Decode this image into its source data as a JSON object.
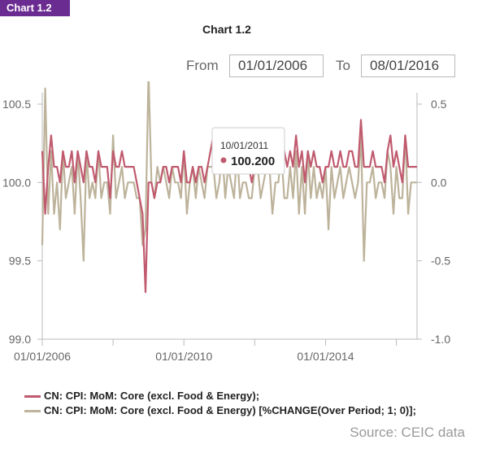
{
  "badge": "Chart 1.2",
  "range": {
    "from_label": "From",
    "from_value": "01/01/2006",
    "to_label": "To",
    "to_value": "08/01/2016"
  },
  "legend": {
    "items": [
      {
        "label": "CN: CPI: MoM: Core (excl. Food & Energy);",
        "color": "#c05a6e"
      },
      {
        "label": "CN: CPI: MoM: Core (excl. Food & Energy) [%CHANGE(Over Period; 1; 0)];",
        "color": "#bdb39b"
      }
    ]
  },
  "source": "Source: CEIC data",
  "tooltip": {
    "date": "10/01/2011",
    "value": "100.200",
    "marker_color": "#c05a6e"
  },
  "chart_data": {
    "type": "line",
    "title": "Chart 1.2",
    "x_start": "2006-01",
    "x_end": "2016-08",
    "x_ticks": [
      "01/01/2006",
      "01/01/2010",
      "01/01/2014"
    ],
    "y_left": {
      "range": [
        99.0,
        100.5
      ],
      "ticks": [
        "99.0",
        "99.5",
        "100.0",
        "100.5"
      ]
    },
    "y_right": {
      "range": [
        -1.0,
        0.5
      ],
      "ticks": [
        "-1.0",
        "-0.5",
        "0.0",
        "0.5"
      ]
    },
    "grid": false,
    "series": [
      {
        "name": "CN: CPI: MoM: Core (excl. Food & Energy);",
        "axis": "left",
        "color": "#c05a6e",
        "values": [
          100.2,
          99.8,
          100.1,
          100.3,
          100.1,
          100.1,
          100.0,
          100.2,
          100.1,
          100.1,
          100.2,
          100.0,
          100.2,
          100.1,
          100.0,
          100.2,
          100.1,
          100.1,
          100.0,
          100.2,
          100.1,
          100.1,
          100.1,
          99.9,
          100.2,
          100.1,
          100.1,
          100.2,
          100.1,
          100.1,
          100.1,
          100.1,
          100.0,
          99.9,
          99.8,
          99.3,
          100.0,
          100.0,
          99.9,
          100.0,
          100.0,
          100.1,
          100.1,
          100.0,
          100.1,
          100.1,
          100.1,
          100.0,
          100.2,
          100.0,
          100.0,
          100.1,
          100.0,
          100.1,
          100.1,
          100.0,
          100.1,
          100.2,
          100.3,
          100.2,
          100.2,
          100.2,
          100.1,
          100.2,
          100.2,
          100.1,
          100.3,
          100.2,
          100.2,
          100.2,
          100.1,
          100.0,
          100.1,
          100.2,
          100.1,
          100.1,
          100.2,
          100.3,
          100.1,
          100.1,
          100.1,
          100.3,
          100.2,
          100.1,
          100.2,
          100.1,
          100.3,
          100.1,
          100.2,
          100.0,
          100.2,
          100.1,
          100.2,
          100.1,
          100.1,
          100.0,
          100.1,
          100.1,
          100.2,
          100.1,
          100.1,
          100.2,
          100.1,
          100.1,
          100.2,
          100.2,
          100.1,
          100.1,
          100.4,
          100.1,
          100.1,
          100.1,
          100.2,
          100.1,
          100.1,
          100.1,
          100.0,
          100.2,
          100.3,
          100.1,
          100.2,
          100.1,
          100.0,
          100.3,
          100.1,
          100.1,
          100.1,
          100.1
        ]
      },
      {
        "name": "CN: CPI: MoM: Core (excl. Food & Energy) [%CHANGE(Over Period; 1; 0)];",
        "axis": "right",
        "color": "#bdb39b",
        "values": [
          -0.4,
          0.6,
          -0.2,
          0.2,
          -0.2,
          0.0,
          -0.3,
          0.2,
          -0.1,
          0.0,
          0.1,
          -0.2,
          0.2,
          -0.1,
          -0.5,
          0.2,
          -0.1,
          0.0,
          -0.1,
          0.2,
          -0.1,
          0.0,
          0.0,
          -0.2,
          0.3,
          -0.1,
          0.0,
          0.1,
          -0.1,
          0.0,
          0.0,
          0.0,
          -0.1,
          -0.1,
          -0.4,
          -0.3,
          0.7,
          0.0,
          -0.1,
          0.1,
          0.0,
          0.1,
          0.0,
          -0.1,
          0.1,
          0.0,
          0.0,
          -0.1,
          0.2,
          -0.2,
          0.0,
          0.1,
          -0.1,
          0.1,
          0.0,
          -0.1,
          0.1,
          0.1,
          0.1,
          -0.1,
          0.0,
          0.2,
          -0.1,
          0.1,
          0.0,
          -0.1,
          0.2,
          -0.1,
          0.0,
          0.0,
          -0.1,
          -0.1,
          0.1,
          0.1,
          -0.1,
          0.0,
          0.1,
          0.1,
          -0.2,
          0.0,
          0.0,
          0.2,
          -0.1,
          -0.1,
          0.1,
          -0.1,
          0.2,
          -0.2,
          0.1,
          -0.2,
          0.2,
          -0.1,
          0.1,
          -0.1,
          0.0,
          -0.1,
          0.1,
          -0.3,
          0.1,
          -0.1,
          0.0,
          0.1,
          -0.1,
          0.0,
          0.1,
          0.0,
          -0.1,
          0.0,
          0.3,
          -0.5,
          0.0,
          0.0,
          0.1,
          -0.1,
          0.0,
          0.0,
          -0.1,
          0.2,
          0.1,
          -0.2,
          0.1,
          -0.1,
          -0.1,
          0.3,
          -0.2,
          0.0,
          0.0,
          0.0
        ]
      }
    ]
  }
}
